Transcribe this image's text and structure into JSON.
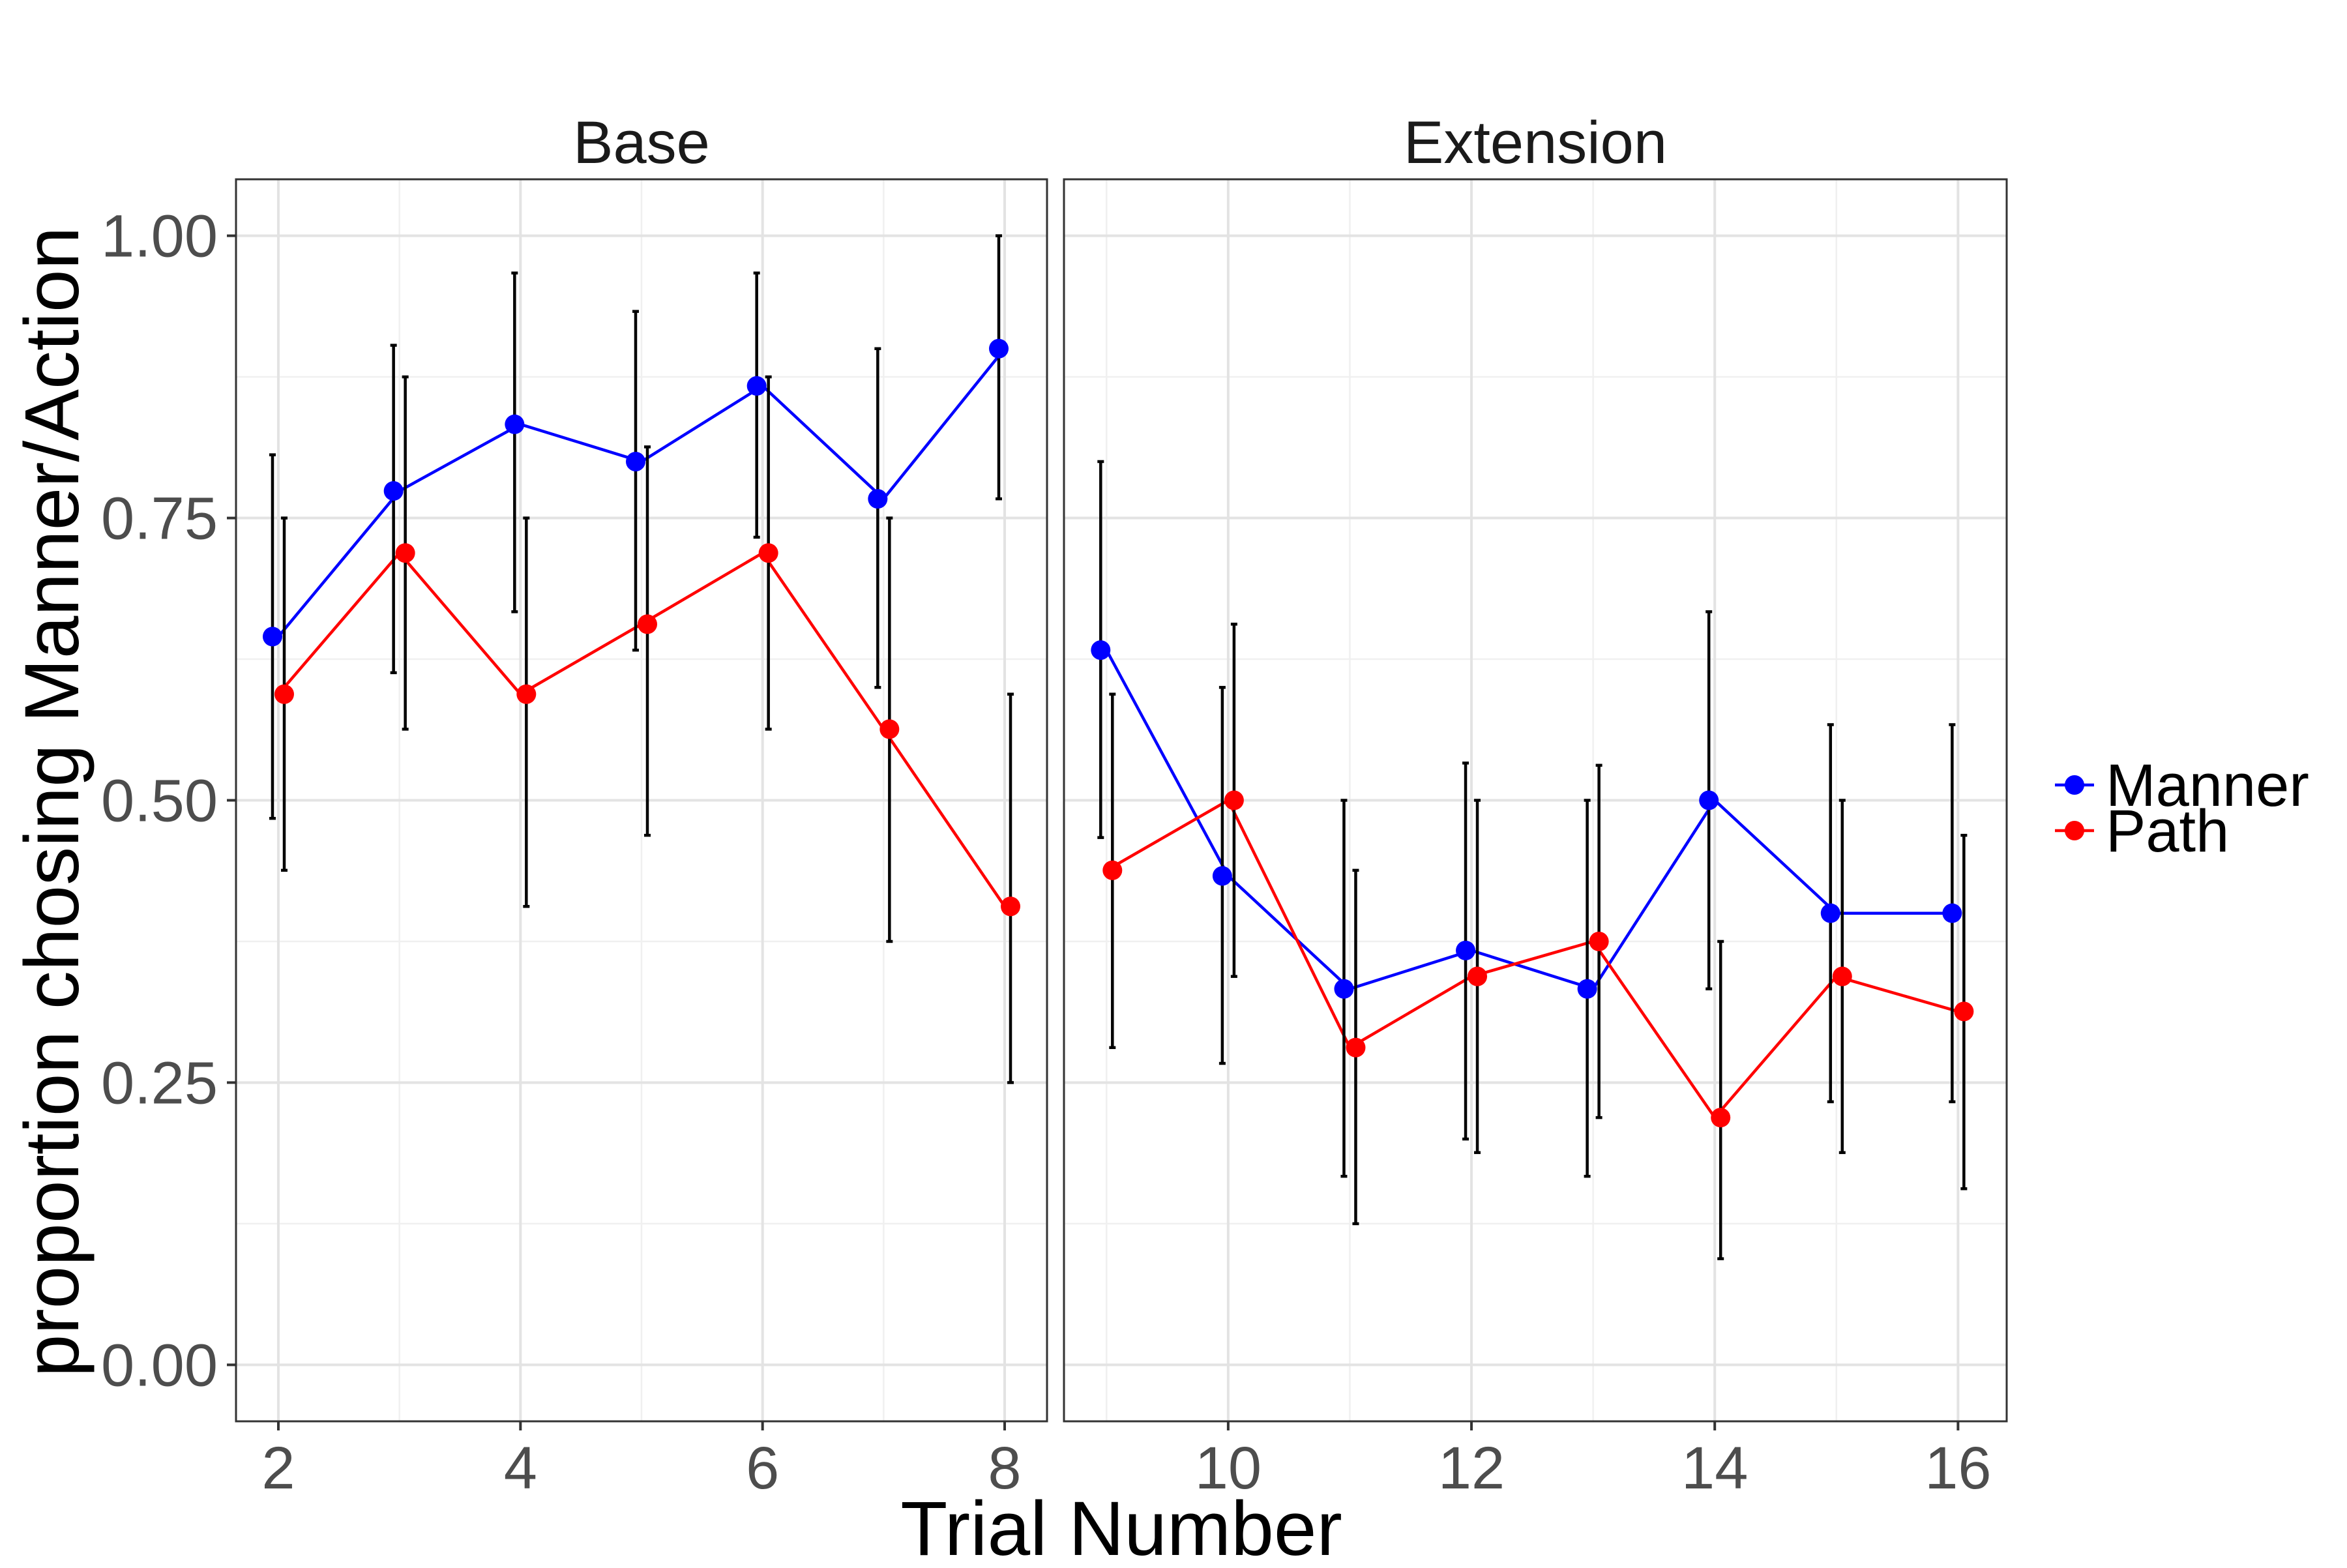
{
  "chart_data": {
    "type": "line",
    "xlabel": "Trial Number",
    "ylabel": "proportion chosing Manner/Action",
    "ylim": [
      -0.05,
      1.05
    ],
    "y_ticks": [
      0.0,
      0.25,
      0.5,
      0.75,
      1.0
    ],
    "y_tick_labels": [
      "0.00",
      "0.25",
      "0.50",
      "0.75",
      "1.00"
    ],
    "grid": true,
    "legend_position": "right",
    "legend": [
      {
        "name": "Manner",
        "color": "#0000ff"
      },
      {
        "name": "Path",
        "color": "#ff0000"
      }
    ],
    "panels": [
      {
        "title": "Base",
        "xlim": [
          1.65,
          8.35
        ],
        "x_ticks": [
          2,
          4,
          6,
          8
        ],
        "x_tick_labels": [
          "2",
          "4",
          "6",
          "8"
        ],
        "series": [
          {
            "name": "Manner",
            "color": "#0000ff",
            "x": [
              2,
              3,
              4,
              5,
              6,
              7,
              8
            ],
            "y": [
              0.645,
              0.774,
              0.833,
              0.8,
              0.867,
              0.767,
              0.9
            ],
            "err_low": [
              0.484,
              0.613,
              0.667,
              0.633,
              0.733,
              0.6,
              0.767
            ],
            "err_high": [
              0.806,
              0.903,
              0.967,
              0.933,
              0.967,
              0.9,
              1.0
            ]
          },
          {
            "name": "Path",
            "color": "#ff0000",
            "x": [
              2,
              3,
              4,
              5,
              6,
              7,
              8
            ],
            "y": [
              0.594,
              0.719,
              0.594,
              0.656,
              0.719,
              0.563,
              0.406
            ],
            "err_low": [
              0.438,
              0.563,
              0.406,
              0.469,
              0.563,
              0.375,
              0.25
            ],
            "err_high": [
              0.75,
              0.875,
              0.75,
              0.813,
              0.875,
              0.75,
              0.594
            ]
          }
        ]
      },
      {
        "title": "Extension",
        "xlim": [
          8.65,
          16.4
        ],
        "x_ticks": [
          10,
          12,
          14,
          16
        ],
        "x_tick_labels": [
          "10",
          "12",
          "14",
          "16"
        ],
        "series": [
          {
            "name": "Manner",
            "color": "#0000ff",
            "x": [
              9,
              10,
              11,
              12,
              13,
              14,
              15,
              16
            ],
            "y": [
              0.633,
              0.433,
              0.333,
              0.367,
              0.333,
              0.5,
              0.4,
              0.4
            ],
            "err_low": [
              0.467,
              0.267,
              0.167,
              0.2,
              0.167,
              0.333,
              0.233,
              0.233
            ],
            "err_high": [
              0.8,
              0.6,
              0.5,
              0.533,
              0.5,
              0.667,
              0.567,
              0.567
            ]
          },
          {
            "name": "Path",
            "color": "#ff0000",
            "x": [
              9,
              10,
              11,
              12,
              13,
              14,
              15,
              16
            ],
            "y": [
              0.438,
              0.5,
              0.281,
              0.344,
              0.375,
              0.219,
              0.344,
              0.313
            ],
            "err_low": [
              0.281,
              0.344,
              0.125,
              0.188,
              0.219,
              0.094,
              0.188,
              0.156
            ],
            "err_high": [
              0.594,
              0.656,
              0.438,
              0.5,
              0.531,
              0.375,
              0.5,
              0.469
            ]
          }
        ]
      }
    ]
  }
}
